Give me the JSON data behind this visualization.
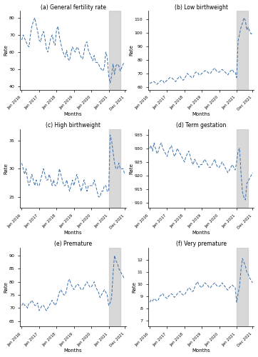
{
  "titles": [
    "(a) General fertility rate",
    "(b) Low birthweight",
    "(c) High birthweight",
    "(d) Term gestation",
    "(e) Premature",
    "(f) Very premature"
  ],
  "ylabel": "Rate",
  "xlabel": "Months",
  "shade_start": 60,
  "shade_end": 68,
  "n_points": 72,
  "line_color": "#3a6ea8",
  "shade_color": "#c8c8c8",
  "shade_alpha": 0.7,
  "panels": [
    {
      "ylim": [
        38,
        84
      ],
      "yticks": [
        40,
        50,
        60,
        70,
        80
      ],
      "data": [
        67,
        70,
        68,
        66,
        64,
        63,
        70,
        75,
        78,
        80,
        76,
        72,
        67,
        66,
        70,
        72,
        68,
        62,
        60,
        64,
        68,
        70,
        66,
        64,
        73,
        75,
        69,
        65,
        61,
        59,
        57,
        61,
        56,
        55,
        60,
        63,
        61,
        60,
        63,
        62,
        59,
        57,
        56,
        60,
        65,
        66,
        61,
        59,
        57,
        55,
        58,
        54,
        54,
        53,
        51,
        50,
        49,
        51,
        60,
        57,
        46,
        42,
        46,
        53,
        47,
        52,
        53,
        52,
        49,
        51,
        53,
        54
      ]
    },
    {
      "ylim": [
        58,
        116
      ],
      "yticks": [
        60,
        70,
        80,
        90,
        100,
        110
      ],
      "data": [
        63,
        63,
        64,
        64,
        63,
        62,
        63,
        64,
        65,
        65,
        63,
        64,
        65,
        66,
        67,
        67,
        66,
        65,
        64,
        66,
        67,
        68,
        66,
        65,
        66,
        68,
        70,
        69,
        68,
        67,
        67,
        70,
        71,
        71,
        69,
        69,
        70,
        71,
        72,
        72,
        71,
        70,
        70,
        72,
        73,
        74,
        72,
        71,
        71,
        72,
        73,
        72,
        71,
        70,
        69,
        71,
        72,
        73,
        71,
        71,
        67,
        94,
        99,
        104,
        107,
        111,
        109,
        102,
        104,
        101,
        99,
        100
      ]
    },
    {
      "ylim": [
        23,
        37
      ],
      "yticks": [
        25,
        30,
        35
      ],
      "data": [
        31,
        30,
        29,
        30,
        28,
        27,
        28,
        29,
        28,
        27,
        28,
        27,
        27,
        28,
        29,
        30,
        29,
        28,
        28,
        29,
        28,
        27,
        28,
        27,
        27,
        28,
        30,
        29,
        28,
        27,
        27,
        28,
        27,
        26,
        27,
        28,
        27,
        28,
        29,
        28,
        27,
        26,
        27,
        28,
        27,
        26,
        27,
        27,
        27,
        27,
        28,
        27,
        26,
        25,
        25,
        26,
        26,
        27,
        27,
        26,
        26,
        36,
        35,
        33,
        31,
        30,
        30,
        31,
        30,
        30,
        30,
        29
      ]
    },
    {
      "ylim": [
        908,
        937
      ],
      "yticks": [
        910,
        915,
        920,
        925,
        930,
        935
      ],
      "data": [
        930,
        931,
        929,
        932,
        930,
        928,
        929,
        931,
        932,
        930,
        929,
        928,
        927,
        929,
        930,
        931,
        929,
        927,
        928,
        930,
        929,
        928,
        927,
        926,
        925,
        927,
        928,
        929,
        927,
        925,
        924,
        926,
        925,
        924,
        923,
        924,
        924,
        925,
        926,
        925,
        924,
        923,
        923,
        924,
        925,
        926,
        924,
        923,
        923,
        924,
        925,
        924,
        923,
        922,
        921,
        922,
        923,
        924,
        923,
        922,
        925,
        929,
        930,
        921,
        914,
        912,
        911,
        917,
        918,
        919,
        920,
        921
      ]
    },
    {
      "ylim": [
        63,
        93
      ],
      "yticks": [
        65,
        70,
        75,
        80,
        85,
        90
      ],
      "data": [
        71,
        72,
        71,
        71,
        70,
        72,
        72,
        73,
        72,
        71,
        71,
        72,
        69,
        70,
        71,
        71,
        70,
        69,
        70,
        71,
        72,
        73,
        72,
        71,
        72,
        74,
        76,
        77,
        76,
        75,
        75,
        77,
        80,
        81,
        79,
        78,
        77,
        78,
        79,
        79,
        78,
        77,
        77,
        78,
        79,
        80,
        79,
        78,
        78,
        79,
        80,
        78,
        77,
        76,
        74,
        75,
        76,
        77,
        76,
        75,
        71,
        72,
        74,
        83,
        90,
        88,
        87,
        85,
        84,
        83,
        82,
        81
      ]
    },
    {
      "ylim": [
        6.5,
        13.0
      ],
      "yticks": [
        7,
        8,
        9,
        10,
        11,
        12
      ],
      "data": [
        8.5,
        8.7,
        8.6,
        8.8,
        8.7,
        8.6,
        8.7,
        9.0,
        9.1,
        9.2,
        9.0,
        8.9,
        8.8,
        9.0,
        9.1,
        9.2,
        9.1,
        8.9,
        9.0,
        9.2,
        9.3,
        9.4,
        9.2,
        9.1,
        9.1,
        9.3,
        9.5,
        9.7,
        9.6,
        9.4,
        9.4,
        9.7,
        10.0,
        10.2,
        9.9,
        9.8,
        9.7,
        9.9,
        10.1,
        10.0,
        9.9,
        9.7,
        9.7,
        9.9,
        10.0,
        10.1,
        9.9,
        9.8,
        9.8,
        9.9,
        10.1,
        9.9,
        9.8,
        9.6,
        9.5,
        9.7,
        9.8,
        9.9,
        9.8,
        9.7,
        8.5,
        9.2,
        9.8,
        11.2,
        12.1,
        11.8,
        11.5,
        11.0,
        10.8,
        10.5,
        10.3,
        10.1
      ]
    }
  ],
  "xtick_positions": [
    0,
    12,
    24,
    36,
    48,
    60,
    71
  ],
  "xtick_labels": [
    "Jan 2016",
    "Jan 2017",
    "Jan 2018",
    "Jan 2019",
    "Jan 2020",
    "Jan 2021",
    "Dec 2021"
  ]
}
